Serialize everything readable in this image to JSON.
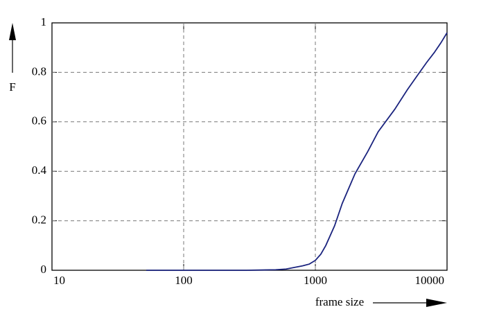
{
  "chart_data": {
    "type": "line",
    "x_label": "frame size",
    "y_label": "F",
    "x": [
      52,
      100,
      300,
      500,
      600,
      700,
      800,
      900,
      1000,
      1100,
      1200,
      1400,
      1600,
      2000,
      2500,
      3000,
      4000,
      5000,
      6000,
      7000,
      8000,
      9000,
      10000
    ],
    "series": [
      {
        "name": "F",
        "color": "#1a237e",
        "values": [
          0,
          0,
          0,
          0.002,
          0.005,
          0.012,
          0.018,
          0.025,
          0.04,
          0.065,
          0.1,
          0.18,
          0.27,
          0.39,
          0.48,
          0.56,
          0.65,
          0.73,
          0.79,
          0.84,
          0.88,
          0.92,
          0.96
        ]
      }
    ],
    "xlim": [
      10,
      10000
    ],
    "xticks": [
      10,
      100,
      1000,
      10000
    ],
    "xlog": true,
    "ylim": [
      0,
      1
    ],
    "yticks": [
      0,
      0.2,
      0.4,
      0.6,
      0.8,
      1
    ],
    "grid": true
  }
}
